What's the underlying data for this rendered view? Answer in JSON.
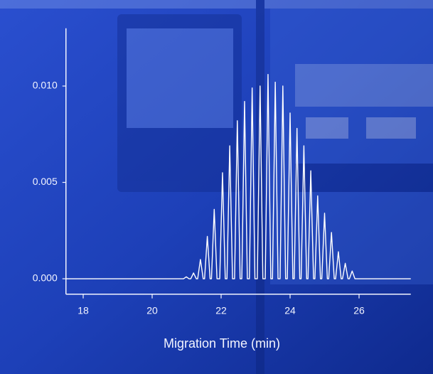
{
  "chart_data": {
    "type": "line",
    "xlabel": "Migration Time (min)",
    "color": "#ffffff",
    "x": [
      17.5,
      20.91,
      20.99,
      21.07,
      21.12,
      21.2,
      21.28,
      21.32,
      21.4,
      21.48,
      21.52,
      21.6,
      21.68,
      21.72,
      21.8,
      21.88,
      21.96,
      22.04,
      22.12,
      22.17,
      22.25,
      22.33,
      22.39,
      22.47,
      22.55,
      22.6,
      22.68,
      22.76,
      22.82,
      22.9,
      22.98,
      23.05,
      23.13,
      23.21,
      23.28,
      23.36,
      23.44,
      23.49,
      23.57,
      23.65,
      23.71,
      23.79,
      23.87,
      23.92,
      24.0,
      24.08,
      24.12,
      24.2,
      24.28,
      24.32,
      24.4,
      24.48,
      24.52,
      24.6,
      24.68,
      24.72,
      24.8,
      24.88,
      24.92,
      25.0,
      25.08,
      25.12,
      25.2,
      25.28,
      25.32,
      25.4,
      25.48,
      25.52,
      25.6,
      25.68,
      25.72,
      25.8,
      25.88,
      27.5
    ],
    "values": [
      0,
      0,
      0.0001,
      0,
      0,
      0.0003,
      0,
      0,
      0.001,
      0,
      0,
      0.0022,
      0,
      0,
      0.0036,
      0,
      0,
      0.0055,
      0,
      0,
      0.0069,
      0,
      0,
      0.0082,
      0,
      0,
      0.0092,
      0,
      0,
      0.0099,
      0,
      0,
      0.01,
      0,
      0,
      0.0106,
      0,
      0,
      0.0102,
      0,
      0,
      0.01,
      0,
      0,
      0.0086,
      0,
      0,
      0.0078,
      0,
      0,
      0.0069,
      0,
      0,
      0.0056,
      0,
      0,
      0.0043,
      0,
      0,
      0.0034,
      0,
      0,
      0.0024,
      0,
      0,
      0.0014,
      0,
      0,
      0.0008,
      0,
      0,
      0.0004,
      0,
      0
    ],
    "xlim": [
      17.5,
      27.5
    ],
    "xticks": [
      18,
      20,
      22,
      24,
      26
    ],
    "ylim": [
      -0.0008,
      0.013
    ],
    "yticks": [
      {
        "value": 0,
        "label": "0.000"
      },
      {
        "value": 0.005,
        "label": "0.005"
      },
      {
        "value": 0.01,
        "label": "0.010"
      }
    ]
  }
}
